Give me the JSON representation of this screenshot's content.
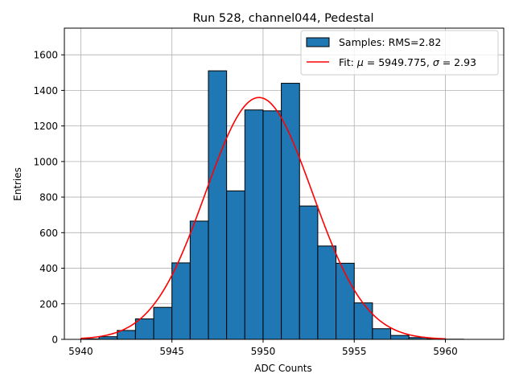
{
  "colors": {
    "bar_fill": "#1f77b4",
    "bar_edge": "#000000",
    "fit_line": "#ff0000",
    "grid": "#b0b0b0",
    "axis": "#000000"
  },
  "chart_data": {
    "type": "bar",
    "title": "Run 528, channel044, Pedestal",
    "xlabel": "ADC Counts",
    "ylabel": "Entries",
    "xlim": [
      5939.1,
      5963.2
    ],
    "ylim": [
      0,
      1750
    ],
    "grid": true,
    "legend_position": "upper-right",
    "xticks": [
      5940,
      5945,
      5950,
      5955,
      5960
    ],
    "xtick_labels": [
      "5940",
      "5945",
      "5950",
      "5955",
      "5960"
    ],
    "yticks": [
      0,
      200,
      400,
      600,
      800,
      1000,
      1200,
      1400,
      1600
    ],
    "ytick_labels": [
      "0",
      "200",
      "400",
      "600",
      "800",
      "1000",
      "1200",
      "1400",
      "1600"
    ],
    "histogram": {
      "name": "Samples: RMS=2.82",
      "bin_width": 1,
      "bin_edges": [
        5940,
        5941,
        5942,
        5943,
        5944,
        5945,
        5946,
        5947,
        5948,
        5949,
        5950,
        5951,
        5952,
        5953,
        5954,
        5955,
        5956,
        5957,
        5958,
        5959,
        5960,
        5961
      ],
      "counts": [
        3,
        15,
        50,
        115,
        180,
        430,
        665,
        1510,
        835,
        1290,
        1285,
        1440,
        750,
        525,
        428,
        205,
        60,
        22,
        10,
        3,
        1
      ]
    },
    "fit": {
      "name_prefix": "Fit: ",
      "mu_symbol": "μ",
      "mu_label": " = 5949.775, ",
      "sigma_symbol": "σ",
      "sigma_label": " = 2.93",
      "type": "gaussian",
      "mu": 5949.775,
      "sigma": 2.93,
      "amplitude": 1360,
      "x_range": [
        5940,
        5960
      ]
    }
  }
}
